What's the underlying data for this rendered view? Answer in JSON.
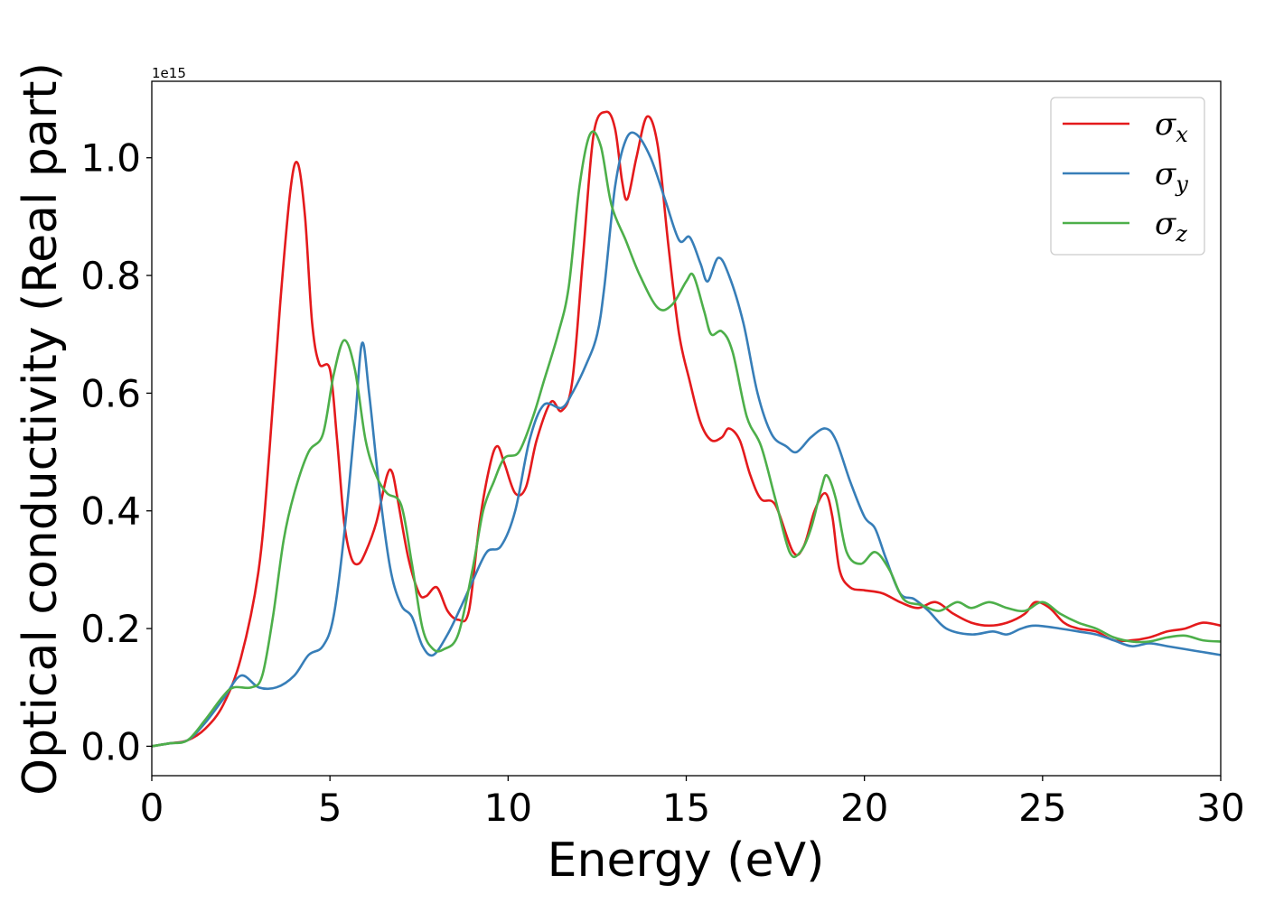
{
  "chart_data": {
    "type": "line",
    "xlabel": "Energy (eV)",
    "ylabel": "Optical conductivity (Real part)",
    "y_offset_text": "1e15",
    "xlim": [
      0,
      30
    ],
    "ylim": [
      -0.05,
      1.13
    ],
    "xticks": [
      0,
      5,
      10,
      15,
      20,
      25,
      30
    ],
    "xtick_labels": [
      "0",
      "5",
      "10",
      "15",
      "20",
      "25",
      "30"
    ],
    "yticks": [
      0.0,
      0.2,
      0.4,
      0.6,
      0.8,
      1.0
    ],
    "ytick_labels": [
      "0.0",
      "0.2",
      "0.4",
      "0.6",
      "0.8",
      "1.0"
    ],
    "grid": false,
    "legend_position": "top-right",
    "series": [
      {
        "name": "σx",
        "symbol": "σ",
        "subscript": "x",
        "color": "#e41a1c",
        "points": [
          [
            0,
            0
          ],
          [
            0.5,
            0.005
          ],
          [
            1,
            0.01
          ],
          [
            1.5,
            0.03
          ],
          [
            2,
            0.07
          ],
          [
            2.5,
            0.15
          ],
          [
            3,
            0.3
          ],
          [
            3.3,
            0.5
          ],
          [
            3.6,
            0.75
          ],
          [
            3.9,
            0.95
          ],
          [
            4.1,
            0.99
          ],
          [
            4.3,
            0.9
          ],
          [
            4.5,
            0.72
          ],
          [
            4.7,
            0.65
          ],
          [
            5,
            0.64
          ],
          [
            5.2,
            0.52
          ],
          [
            5.4,
            0.38
          ],
          [
            5.6,
            0.32
          ],
          [
            5.8,
            0.31
          ],
          [
            6,
            0.33
          ],
          [
            6.3,
            0.38
          ],
          [
            6.6,
            0.46
          ],
          [
            6.75,
            0.465
          ],
          [
            6.9,
            0.42
          ],
          [
            7.2,
            0.32
          ],
          [
            7.5,
            0.26
          ],
          [
            7.7,
            0.255
          ],
          [
            8,
            0.27
          ],
          [
            8.3,
            0.23
          ],
          [
            8.6,
            0.215
          ],
          [
            8.9,
            0.23
          ],
          [
            9.2,
            0.38
          ],
          [
            9.5,
            0.48
          ],
          [
            9.7,
            0.51
          ],
          [
            9.9,
            0.48
          ],
          [
            10.2,
            0.43
          ],
          [
            10.5,
            0.44
          ],
          [
            10.8,
            0.52
          ],
          [
            11.2,
            0.585
          ],
          [
            11.5,
            0.57
          ],
          [
            11.8,
            0.62
          ],
          [
            12.1,
            0.83
          ],
          [
            12.4,
            1.04
          ],
          [
            12.75,
            1.078
          ],
          [
            13,
            1.05
          ],
          [
            13.2,
            0.96
          ],
          [
            13.35,
            0.93
          ],
          [
            13.6,
            1.0
          ],
          [
            13.9,
            1.07
          ],
          [
            14.2,
            1.02
          ],
          [
            14.5,
            0.85
          ],
          [
            14.8,
            0.7
          ],
          [
            15.1,
            0.62
          ],
          [
            15.4,
            0.55
          ],
          [
            15.7,
            0.52
          ],
          [
            16,
            0.525
          ],
          [
            16.2,
            0.54
          ],
          [
            16.5,
            0.52
          ],
          [
            16.8,
            0.46
          ],
          [
            17.1,
            0.42
          ],
          [
            17.5,
            0.41
          ],
          [
            18,
            0.33
          ],
          [
            18.3,
            0.34
          ],
          [
            18.6,
            0.4
          ],
          [
            18.9,
            0.43
          ],
          [
            19.1,
            0.39
          ],
          [
            19.3,
            0.3
          ],
          [
            19.6,
            0.27
          ],
          [
            20,
            0.265
          ],
          [
            20.5,
            0.26
          ],
          [
            21,
            0.245
          ],
          [
            21.5,
            0.235
          ],
          [
            22,
            0.245
          ],
          [
            22.5,
            0.225
          ],
          [
            23,
            0.21
          ],
          [
            23.5,
            0.205
          ],
          [
            24,
            0.21
          ],
          [
            24.5,
            0.225
          ],
          [
            24.8,
            0.245
          ],
          [
            25.2,
            0.235
          ],
          [
            25.6,
            0.21
          ],
          [
            26,
            0.2
          ],
          [
            26.5,
            0.195
          ],
          [
            27,
            0.18
          ],
          [
            27.5,
            0.18
          ],
          [
            28,
            0.185
          ],
          [
            28.5,
            0.195
          ],
          [
            29,
            0.2
          ],
          [
            29.5,
            0.21
          ],
          [
            30,
            0.205
          ]
        ]
      },
      {
        "name": "σy",
        "symbol": "σ",
        "subscript": "y",
        "color": "#377eb8",
        "points": [
          [
            0,
            0
          ],
          [
            0.5,
            0.005
          ],
          [
            1,
            0.01
          ],
          [
            1.5,
            0.04
          ],
          [
            2,
            0.08
          ],
          [
            2.5,
            0.12
          ],
          [
            3,
            0.1
          ],
          [
            3.5,
            0.1
          ],
          [
            4,
            0.12
          ],
          [
            4.4,
            0.155
          ],
          [
            4.8,
            0.17
          ],
          [
            5.1,
            0.22
          ],
          [
            5.4,
            0.36
          ],
          [
            5.7,
            0.55
          ],
          [
            5.9,
            0.685
          ],
          [
            6.1,
            0.6
          ],
          [
            6.4,
            0.43
          ],
          [
            6.7,
            0.3
          ],
          [
            7,
            0.24
          ],
          [
            7.3,
            0.22
          ],
          [
            7.6,
            0.17
          ],
          [
            7.9,
            0.155
          ],
          [
            8.3,
            0.19
          ],
          [
            8.7,
            0.24
          ],
          [
            9,
            0.28
          ],
          [
            9.4,
            0.33
          ],
          [
            9.8,
            0.34
          ],
          [
            10.2,
            0.4
          ],
          [
            10.6,
            0.52
          ],
          [
            11,
            0.58
          ],
          [
            11.5,
            0.575
          ],
          [
            11.8,
            0.6
          ],
          [
            12.2,
            0.65
          ],
          [
            12.5,
            0.7
          ],
          [
            12.7,
            0.78
          ],
          [
            13,
            0.95
          ],
          [
            13.3,
            1.03
          ],
          [
            13.6,
            1.04
          ],
          [
            14,
            1.0
          ],
          [
            14.4,
            0.93
          ],
          [
            14.8,
            0.86
          ],
          [
            15.1,
            0.865
          ],
          [
            15.4,
            0.82
          ],
          [
            15.6,
            0.79
          ],
          [
            15.9,
            0.83
          ],
          [
            16.2,
            0.8
          ],
          [
            16.6,
            0.72
          ],
          [
            17,
            0.6
          ],
          [
            17.4,
            0.53
          ],
          [
            17.8,
            0.51
          ],
          [
            18.1,
            0.5
          ],
          [
            18.5,
            0.525
          ],
          [
            18.9,
            0.54
          ],
          [
            19.2,
            0.52
          ],
          [
            19.6,
            0.45
          ],
          [
            20,
            0.39
          ],
          [
            20.3,
            0.37
          ],
          [
            20.6,
            0.32
          ],
          [
            21,
            0.26
          ],
          [
            21.4,
            0.25
          ],
          [
            21.8,
            0.23
          ],
          [
            22.3,
            0.2
          ],
          [
            23,
            0.19
          ],
          [
            23.6,
            0.195
          ],
          [
            24,
            0.19
          ],
          [
            24.4,
            0.2
          ],
          [
            24.8,
            0.205
          ],
          [
            25.5,
            0.2
          ],
          [
            26,
            0.195
          ],
          [
            26.5,
            0.19
          ],
          [
            27,
            0.18
          ],
          [
            27.5,
            0.17
          ],
          [
            28,
            0.175
          ],
          [
            28.5,
            0.17
          ],
          [
            29,
            0.165
          ],
          [
            29.5,
            0.16
          ],
          [
            30,
            0.155
          ]
        ]
      },
      {
        "name": "σz",
        "symbol": "σ",
        "subscript": "z",
        "color": "#4daf4a",
        "points": [
          [
            0,
            0
          ],
          [
            0.5,
            0.005
          ],
          [
            1,
            0.01
          ],
          [
            1.5,
            0.045
          ],
          [
            2,
            0.085
          ],
          [
            2.3,
            0.1
          ],
          [
            2.8,
            0.1
          ],
          [
            3.1,
            0.12
          ],
          [
            3.4,
            0.22
          ],
          [
            3.7,
            0.35
          ],
          [
            4,
            0.43
          ],
          [
            4.4,
            0.5
          ],
          [
            4.8,
            0.53
          ],
          [
            5.1,
            0.63
          ],
          [
            5.4,
            0.69
          ],
          [
            5.7,
            0.64
          ],
          [
            6,
            0.52
          ],
          [
            6.3,
            0.46
          ],
          [
            6.6,
            0.43
          ],
          [
            7,
            0.41
          ],
          [
            7.3,
            0.31
          ],
          [
            7.6,
            0.2
          ],
          [
            7.9,
            0.165
          ],
          [
            8.2,
            0.165
          ],
          [
            8.6,
            0.19
          ],
          [
            9,
            0.3
          ],
          [
            9.3,
            0.4
          ],
          [
            9.6,
            0.45
          ],
          [
            9.9,
            0.49
          ],
          [
            10.3,
            0.5
          ],
          [
            10.7,
            0.56
          ],
          [
            11,
            0.62
          ],
          [
            11.4,
            0.7
          ],
          [
            11.7,
            0.78
          ],
          [
            12,
            0.95
          ],
          [
            12.3,
            1.04
          ],
          [
            12.6,
            1.02
          ],
          [
            12.9,
            0.92
          ],
          [
            13.3,
            0.86
          ],
          [
            13.7,
            0.8
          ],
          [
            14.2,
            0.745
          ],
          [
            14.6,
            0.75
          ],
          [
            15,
            0.79
          ],
          [
            15.2,
            0.8
          ],
          [
            15.5,
            0.74
          ],
          [
            15.7,
            0.7
          ],
          [
            16,
            0.705
          ],
          [
            16.3,
            0.67
          ],
          [
            16.7,
            0.56
          ],
          [
            17.1,
            0.51
          ],
          [
            17.5,
            0.42
          ],
          [
            17.9,
            0.33
          ],
          [
            18.2,
            0.33
          ],
          [
            18.5,
            0.37
          ],
          [
            18.8,
            0.44
          ],
          [
            18.95,
            0.46
          ],
          [
            19.2,
            0.42
          ],
          [
            19.5,
            0.33
          ],
          [
            19.9,
            0.31
          ],
          [
            20.3,
            0.33
          ],
          [
            20.7,
            0.3
          ],
          [
            21.1,
            0.25
          ],
          [
            21.6,
            0.24
          ],
          [
            22.1,
            0.23
          ],
          [
            22.6,
            0.245
          ],
          [
            23,
            0.235
          ],
          [
            23.5,
            0.245
          ],
          [
            24,
            0.235
          ],
          [
            24.5,
            0.23
          ],
          [
            25,
            0.245
          ],
          [
            25.5,
            0.225
          ],
          [
            26,
            0.21
          ],
          [
            26.5,
            0.2
          ],
          [
            27,
            0.185
          ],
          [
            27.5,
            0.178
          ],
          [
            28,
            0.178
          ],
          [
            28.5,
            0.185
          ],
          [
            29,
            0.188
          ],
          [
            29.5,
            0.18
          ],
          [
            30,
            0.178
          ]
        ]
      }
    ]
  }
}
